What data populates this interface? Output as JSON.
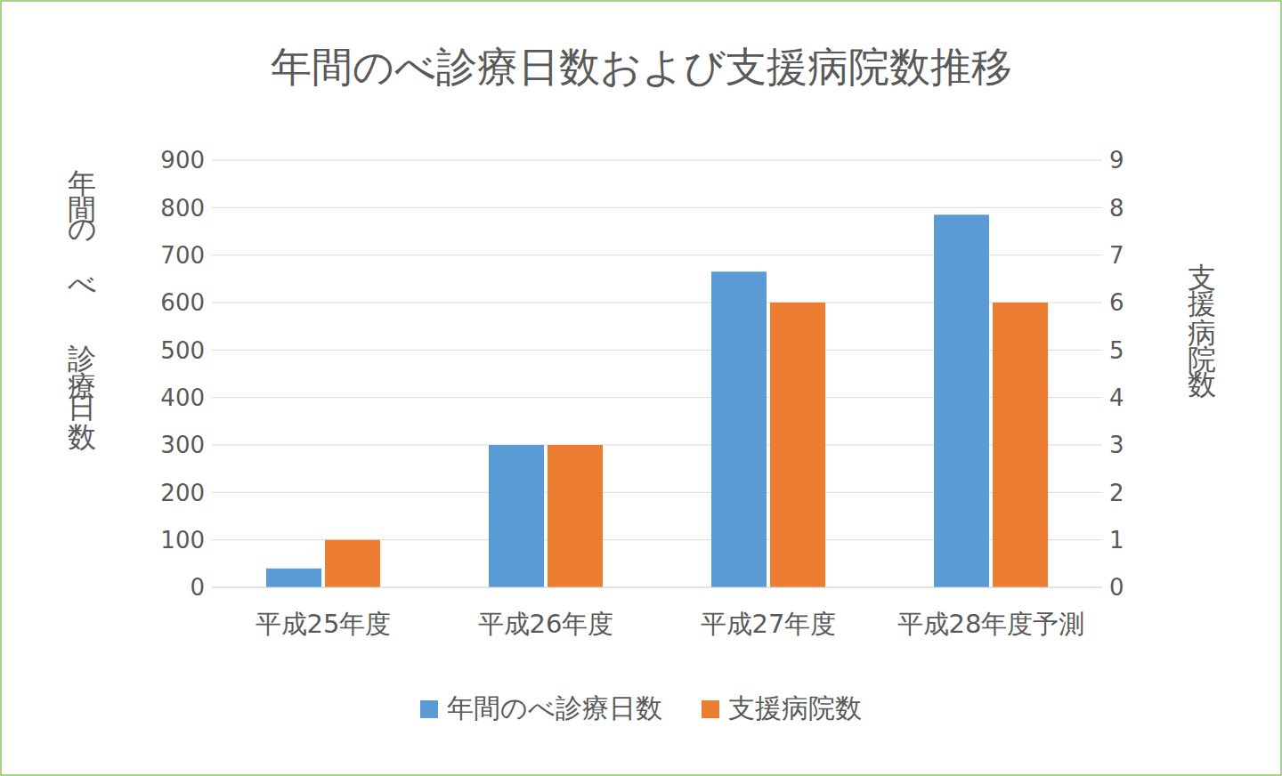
{
  "chart_data": {
    "type": "bar",
    "title": "年間のべ診療日数および支援病院数推移",
    "categories": [
      "平成25年度",
      "平成26年度",
      "平成27年度",
      "平成28年度予測"
    ],
    "series": [
      {
        "name": "年間のべ診療日数",
        "color": "#5b9bd5",
        "values": [
          40,
          300,
          665,
          785
        ]
      },
      {
        "name": "支援病院数",
        "color": "#ed7d31",
        "axis": "y2",
        "values": [
          1,
          3,
          6,
          6
        ]
      }
    ],
    "ylabel": "年間のべ診療日数",
    "y2label": "支援病院数",
    "ylim": [
      0,
      900
    ],
    "yticks": [
      0,
      100,
      200,
      300,
      400,
      500,
      600,
      700,
      800,
      900
    ],
    "y2lim": [
      0,
      9
    ],
    "y2ticks": [
      0,
      1,
      2,
      3,
      4,
      5,
      6,
      7,
      8,
      9
    ],
    "grid": true,
    "legend": "bottom"
  }
}
